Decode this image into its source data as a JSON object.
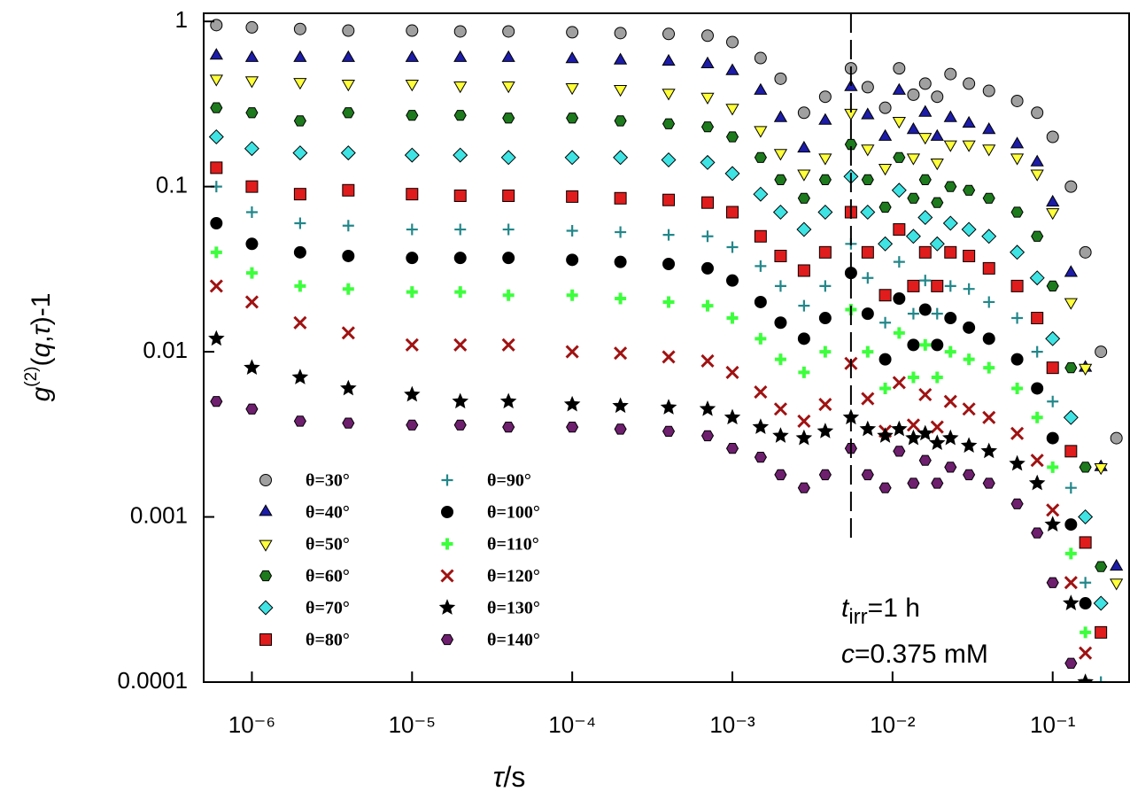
{
  "chart_data": {
    "type": "scatter",
    "x_label": [
      "τ",
      "/s"
    ],
    "y_label": [
      "g",
      "(2)",
      "(",
      "q",
      ",",
      "τ",
      ")-1"
    ],
    "annotations": [
      [
        "t",
        "irr",
        "=1 h"
      ],
      [
        "c",
        "=0.375 mM"
      ]
    ],
    "log_x": true,
    "log_y": true,
    "xlim": [
      5e-07,
      0.3
    ],
    "ylim": [
      0.0001,
      1.12
    ],
    "xticks": [
      {
        "value": 1e-06,
        "label": "10⁻⁶"
      },
      {
        "value": 1e-05,
        "label": "10⁻⁵"
      },
      {
        "value": 0.0001,
        "label": "10⁻⁴"
      },
      {
        "value": 0.001,
        "label": "10⁻³"
      },
      {
        "value": 0.01,
        "label": "10⁻²"
      },
      {
        "value": 0.1,
        "label": "10⁻¹"
      }
    ],
    "yticks": [
      0.0001,
      0.001,
      0.01,
      0.1,
      1
    ],
    "vline": 0.0055,
    "x": [
      6e-07,
      1e-06,
      2e-06,
      4e-06,
      1e-05,
      2e-05,
      4e-05,
      0.0001,
      0.0002,
      0.0004,
      0.0007,
      0.001,
      0.0015,
      0.002,
      0.0028,
      0.0038,
      0.0055,
      0.007,
      0.009,
      0.011,
      0.0135,
      0.016,
      0.019,
      0.023,
      0.03,
      0.04,
      0.06,
      0.08,
      0.1,
      0.13,
      0.16,
      0.2,
      0.25
    ],
    "series": [
      {
        "name": "θ=30°",
        "marker": "circle",
        "color": "#a0a0a0",
        "values": [
          0.95,
          0.92,
          0.9,
          0.88,
          0.88,
          0.87,
          0.87,
          0.86,
          0.85,
          0.84,
          0.82,
          0.75,
          0.6,
          0.45,
          0.28,
          0.35,
          0.52,
          0.4,
          0.3,
          0.52,
          0.36,
          0.42,
          0.35,
          0.48,
          0.42,
          0.38,
          0.33,
          0.28,
          0.2,
          0.1,
          0.04,
          0.01,
          0.003
        ]
      },
      {
        "name": "θ=40°",
        "marker": "triangle",
        "color": "#1c1ca8",
        "values": [
          0.62,
          0.6,
          0.6,
          0.6,
          0.6,
          0.6,
          0.6,
          0.59,
          0.58,
          0.57,
          0.55,
          0.5,
          0.38,
          0.26,
          0.17,
          0.25,
          0.4,
          0.27,
          0.2,
          0.38,
          0.22,
          0.28,
          0.2,
          0.26,
          0.24,
          0.22,
          0.18,
          0.14,
          0.08,
          0.03,
          0.008,
          0.002,
          0.0005
        ]
      },
      {
        "name": "θ=50°",
        "marker": "triangle-down",
        "color": "#ffff3a",
        "values": [
          0.45,
          0.44,
          0.43,
          0.42,
          0.42,
          0.41,
          0.41,
          0.4,
          0.39,
          0.37,
          0.35,
          0.3,
          0.22,
          0.16,
          0.12,
          0.15,
          0.28,
          0.17,
          0.13,
          0.25,
          0.15,
          0.2,
          0.14,
          0.18,
          0.18,
          0.17,
          0.15,
          0.12,
          0.07,
          0.02,
          0.008,
          0.002,
          0.0004
        ]
      },
      {
        "name": "θ=60°",
        "marker": "hexagon",
        "color": "#1d7a1d",
        "values": [
          0.3,
          0.28,
          0.25,
          0.28,
          0.27,
          0.27,
          0.26,
          0.26,
          0.25,
          0.24,
          0.23,
          0.2,
          0.15,
          0.11,
          0.085,
          0.11,
          0.18,
          0.11,
          0.075,
          0.15,
          0.085,
          0.11,
          0.08,
          0.1,
          0.095,
          0.085,
          0.07,
          0.05,
          0.025,
          0.008,
          0.002,
          0.0005,
          null
        ]
      },
      {
        "name": "θ=70°",
        "marker": "diamond",
        "color": "#3fe3e3",
        "values": [
          0.2,
          0.17,
          0.16,
          0.16,
          0.155,
          0.155,
          0.15,
          0.15,
          0.15,
          0.145,
          0.14,
          0.12,
          0.09,
          0.07,
          0.055,
          0.07,
          0.115,
          0.07,
          0.045,
          0.095,
          0.05,
          0.065,
          0.045,
          0.06,
          0.055,
          0.05,
          0.04,
          0.028,
          0.012,
          0.004,
          0.001,
          0.0003,
          null
        ]
      },
      {
        "name": "θ=80°",
        "marker": "square",
        "color": "#e01c1c",
        "values": [
          0.13,
          0.1,
          0.09,
          0.095,
          0.09,
          0.088,
          0.088,
          0.087,
          0.085,
          0.083,
          0.08,
          0.07,
          0.05,
          0.038,
          0.031,
          0.04,
          0.07,
          0.04,
          0.022,
          0.055,
          0.025,
          0.04,
          0.025,
          0.04,
          0.038,
          0.032,
          0.025,
          0.016,
          0.008,
          0.0025,
          0.0007,
          0.0002,
          null
        ]
      },
      {
        "name": "θ=90°",
        "marker": "plus",
        "color": "#22878a",
        "values": [
          0.1,
          0.07,
          0.06,
          0.058,
          0.055,
          0.055,
          0.055,
          0.054,
          0.053,
          0.051,
          0.05,
          0.043,
          0.033,
          0.025,
          0.019,
          0.025,
          0.045,
          0.028,
          0.015,
          0.035,
          0.017,
          0.027,
          0.017,
          0.025,
          0.024,
          0.02,
          0.016,
          0.01,
          0.005,
          0.0015,
          0.0004,
          0.0001,
          null
        ]
      },
      {
        "name": "θ=100°",
        "marker": "circle",
        "color": "#000000",
        "values": [
          0.06,
          0.045,
          0.04,
          0.038,
          0.037,
          0.037,
          0.037,
          0.036,
          0.035,
          0.034,
          0.032,
          0.027,
          0.02,
          0.015,
          0.012,
          0.016,
          0.03,
          0.017,
          0.009,
          0.021,
          0.011,
          0.018,
          0.011,
          0.016,
          0.014,
          0.012,
          0.009,
          0.006,
          0.003,
          0.0009,
          0.0003,
          null,
          null
        ]
      },
      {
        "name": "θ=110°",
        "marker": "cross",
        "color": "#3cff3c",
        "values": [
          0.04,
          0.03,
          0.025,
          0.024,
          0.023,
          0.023,
          0.022,
          0.022,
          0.021,
          0.02,
          0.019,
          0.016,
          0.012,
          0.009,
          0.0075,
          0.01,
          0.018,
          0.01,
          0.006,
          0.013,
          0.007,
          0.011,
          0.007,
          0.01,
          0.009,
          0.008,
          0.006,
          0.004,
          0.002,
          0.0006,
          0.0002,
          null,
          null
        ]
      },
      {
        "name": "θ=120°",
        "marker": "x",
        "color": "#a01212",
        "values": [
          0.025,
          0.02,
          0.015,
          0.013,
          0.011,
          0.011,
          0.011,
          0.01,
          0.0098,
          0.0093,
          0.0088,
          0.0075,
          0.0057,
          0.0045,
          0.0038,
          0.0048,
          0.0085,
          0.0052,
          0.0033,
          0.0065,
          0.0036,
          0.0055,
          0.0035,
          0.005,
          0.0045,
          0.004,
          0.0032,
          0.0022,
          0.0011,
          0.0004,
          0.00015,
          null,
          null
        ]
      },
      {
        "name": "θ=130°",
        "marker": "star",
        "color": "#000000",
        "values": [
          0.012,
          0.008,
          0.007,
          0.006,
          0.0055,
          0.005,
          0.005,
          0.0048,
          0.0047,
          0.0046,
          0.0045,
          0.004,
          0.0035,
          0.0031,
          0.003,
          0.0033,
          0.004,
          0.0034,
          0.0031,
          0.0034,
          0.003,
          0.0032,
          0.0028,
          0.003,
          0.0027,
          0.0025,
          0.0021,
          0.0016,
          0.0009,
          0.0003,
          0.0001,
          null,
          null
        ]
      },
      {
        "name": "θ=140°",
        "marker": "hexagon",
        "color": "#6e1f6e",
        "values": [
          0.005,
          0.0045,
          0.0038,
          0.0037,
          0.0036,
          0.0036,
          0.0035,
          0.0035,
          0.0034,
          0.0033,
          0.0031,
          0.0026,
          0.0023,
          0.0018,
          0.0015,
          0.0018,
          0.0026,
          0.0018,
          0.0015,
          0.0025,
          0.0016,
          0.0022,
          0.0016,
          0.002,
          0.0018,
          0.0016,
          0.0012,
          0.0008,
          0.0004,
          0.00013,
          null,
          null,
          null
        ]
      }
    ]
  }
}
